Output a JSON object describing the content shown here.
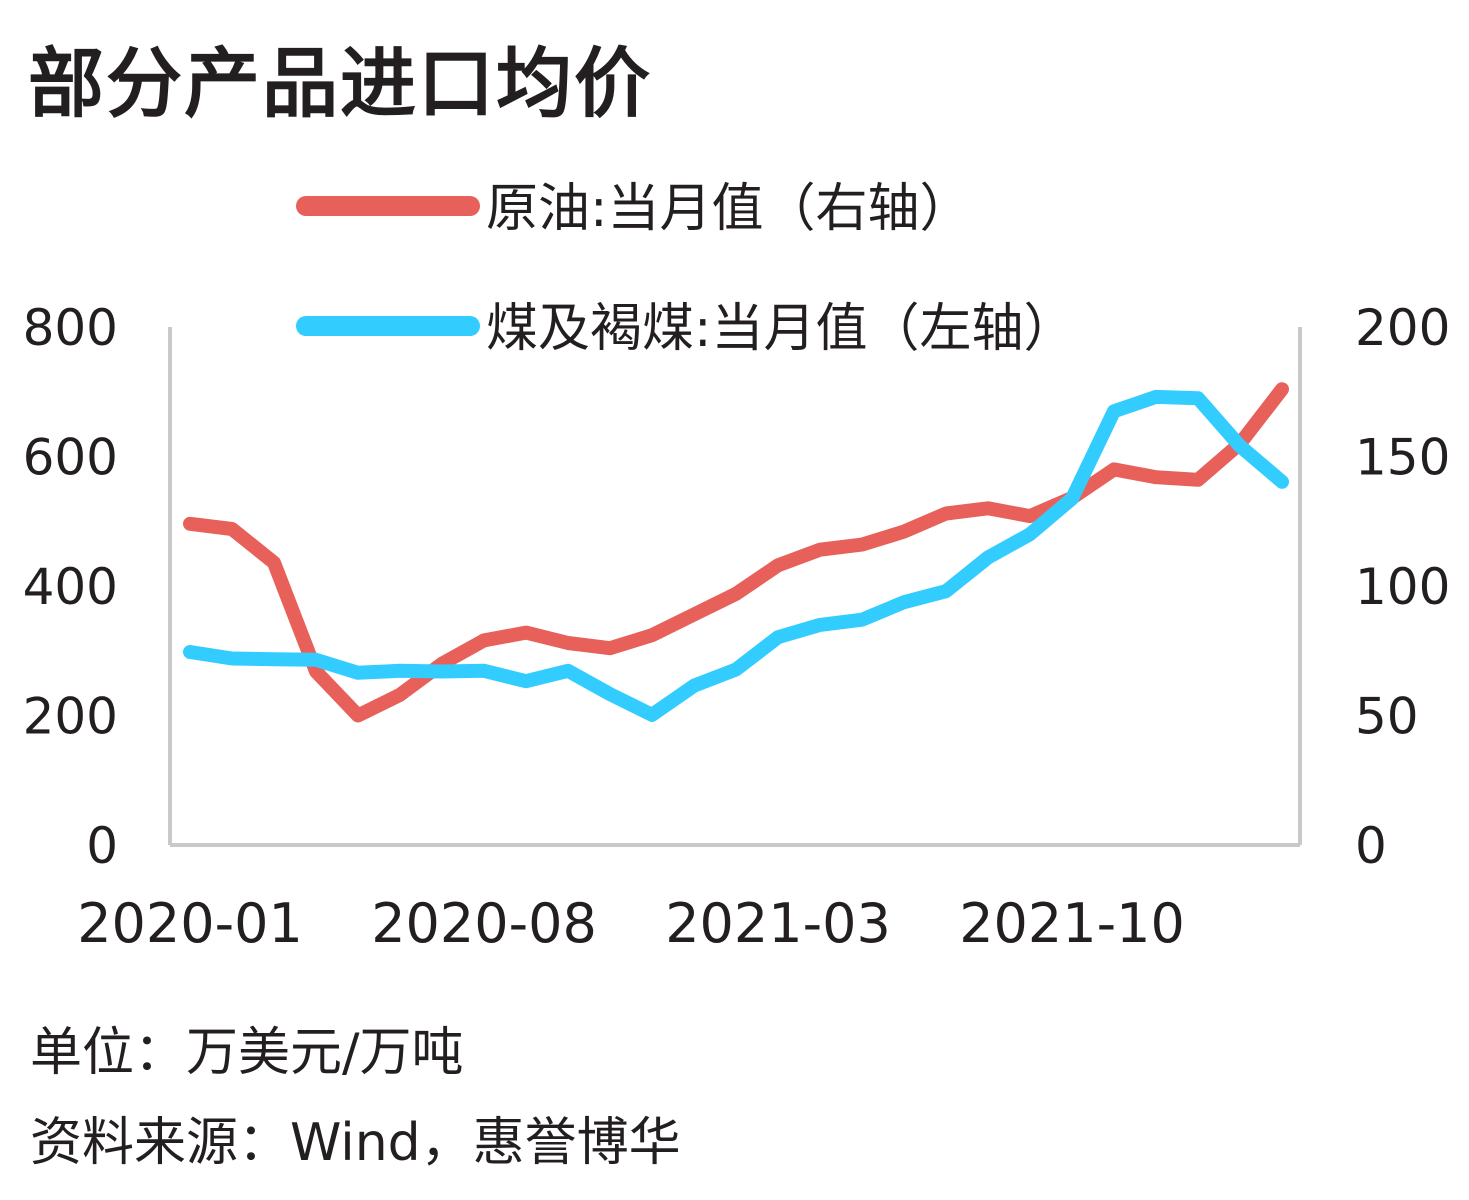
{
  "title": "部分产品进口均价",
  "unit_note": "单位：万美元/万吨",
  "source_note": "资料来源：Wind，惠誉博华",
  "colors": {
    "oil": "#e8605a",
    "coal": "#33ccff",
    "axis": "#c9c9c9"
  },
  "chart_data": {
    "type": "line",
    "title": "部分产品进口均价",
    "x": [
      "2020-01",
      "2020-02",
      "2020-03",
      "2020-04",
      "2020-05",
      "2020-06",
      "2020-07",
      "2020-08",
      "2020-09",
      "2020-10",
      "2020-11",
      "2020-12",
      "2021-01",
      "2021-02",
      "2021-03",
      "2021-04",
      "2021-05",
      "2021-06",
      "2021-07",
      "2021-08",
      "2021-09",
      "2021-10",
      "2021-11",
      "2021-12",
      "2022-01",
      "2022-02",
      "2022-03"
    ],
    "x_tick_labels": [
      "2020-01",
      "2020-08",
      "2021-03",
      "2021-10"
    ],
    "left_axis": {
      "ylim": [
        0,
        800
      ],
      "ticks": [
        "0",
        "200",
        "400",
        "600",
        "800"
      ]
    },
    "right_axis": {
      "ylim": [
        0,
        200
      ],
      "ticks": [
        "0",
        "50",
        "100",
        "150",
        "200"
      ]
    },
    "grid": false,
    "series": [
      {
        "name": "原油:当月值（右轴）",
        "axis": "right",
        "values": [
          124,
          122,
          109,
          67,
          50,
          58,
          70,
          79,
          82,
          78,
          76,
          81,
          89,
          97,
          108,
          114,
          116,
          121,
          128,
          130,
          127,
          134,
          145,
          142,
          141,
          155,
          176
        ]
      },
      {
        "name": "煤及褐煤:当月值（左轴）",
        "axis": "left",
        "values": [
          298,
          288,
          287,
          286,
          266,
          269,
          268,
          269,
          253,
          269,
          233,
          201,
          246,
          271,
          321,
          340,
          348,
          375,
          392,
          444,
          480,
          535,
          670,
          692,
          690,
          616,
          561
        ]
      }
    ]
  }
}
